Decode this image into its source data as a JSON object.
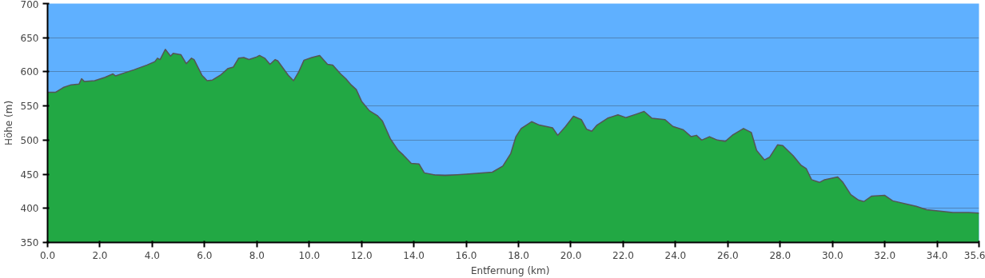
{
  "chart_data": {
    "type": "area",
    "xlabel": "Entfernung   (km)",
    "ylabel": "Höhe (m)",
    "x": [
      0.0,
      0.3,
      0.6,
      0.9,
      1.2,
      1.3,
      1.4,
      1.8,
      2.2,
      2.5,
      2.6,
      2.9,
      3.3,
      3.8,
      4.1,
      4.2,
      4.3,
      4.5,
      4.7,
      4.8,
      5.1,
      5.3,
      5.5,
      5.6,
      5.9,
      6.1,
      6.3,
      6.6,
      6.9,
      7.1,
      7.3,
      7.5,
      7.7,
      8.0,
      8.1,
      8.3,
      8.5,
      8.7,
      8.8,
      9.2,
      9.4,
      9.6,
      9.8,
      10.1,
      10.4,
      10.7,
      10.9,
      11.2,
      11.4,
      11.6,
      11.8,
      12.0,
      12.3,
      12.6,
      12.8,
      13.1,
      13.4,
      13.6,
      13.9,
      14.2,
      14.4,
      14.8,
      15.2,
      16.0,
      17.0,
      17.4,
      17.7,
      17.9,
      18.1,
      18.5,
      18.8,
      19.3,
      19.5,
      19.8,
      20.1,
      20.4,
      20.6,
      20.8,
      21.0,
      21.4,
      21.8,
      22.1,
      22.5,
      22.8,
      23.1,
      23.6,
      23.9,
      24.3,
      24.6,
      24.8,
      25.0,
      25.3,
      25.6,
      25.9,
      26.2,
      26.6,
      26.9,
      27.1,
      27.4,
      27.6,
      27.9,
      28.1,
      28.5,
      28.8,
      29.0,
      29.2,
      29.5,
      29.7,
      30.2,
      30.4,
      30.7,
      31.0,
      31.2,
      31.5,
      32.0,
      32.3,
      33.2,
      33.6,
      34.1,
      34.6,
      35.2,
      35.6
    ],
    "series": [
      {
        "color": "#22a844",
        "values": [
          570,
          570,
          577,
          581,
          582,
          590,
          586,
          587,
          592,
          597,
          594,
          598,
          603,
          610,
          615,
          620,
          618,
          633,
          623,
          627,
          625,
          612,
          620,
          618,
          595,
          587,
          588,
          595,
          605,
          607,
          620,
          621,
          618,
          622,
          624,
          620,
          611,
          618,
          616,
          595,
          587,
          600,
          617,
          621,
          624,
          611,
          610,
          597,
          590,
          581,
          574,
          557,
          543,
          536,
          528,
          502,
          485,
          478,
          466,
          465,
          452,
          449,
          448,
          450,
          453,
          462,
          480,
          505,
          517,
          527,
          522,
          518,
          507,
          520,
          535,
          530,
          516,
          513,
          522,
          532,
          537,
          533,
          538,
          542,
          532,
          530,
          520,
          515,
          505,
          507,
          500,
          505,
          500,
          498,
          508,
          517,
          511,
          485,
          471,
          475,
          493,
          492,
          477,
          463,
          458,
          442,
          438,
          442,
          446,
          438,
          420,
          412,
          410,
          418,
          419,
          411,
          403,
          398,
          396,
          394,
          394,
          393
        ]
      }
    ],
    "xlim": [
      0,
      35.6
    ],
    "ylim": [
      350,
      700
    ],
    "xticks": [
      {
        "value": 0,
        "label": "0.0"
      },
      {
        "value": 2,
        "label": "2.0"
      },
      {
        "value": 4,
        "label": "4.0"
      },
      {
        "value": 6,
        "label": "6.0"
      },
      {
        "value": 8,
        "label": "8.0"
      },
      {
        "value": 10,
        "label": "10.0"
      },
      {
        "value": 12,
        "label": "12.0"
      },
      {
        "value": 14,
        "label": "14.0"
      },
      {
        "value": 16,
        "label": "16.0"
      },
      {
        "value": 18,
        "label": "18.0"
      },
      {
        "value": 20,
        "label": "20.0"
      },
      {
        "value": 22,
        "label": "22.0"
      },
      {
        "value": 24,
        "label": "24.0"
      },
      {
        "value": 26,
        "label": "26.0"
      },
      {
        "value": 28,
        "label": "28.0"
      },
      {
        "value": 30,
        "label": "30.0"
      },
      {
        "value": 32,
        "label": "32.0"
      },
      {
        "value": 34,
        "label": "34.0"
      },
      {
        "value": 35.6,
        "label": "35.6"
      }
    ],
    "yticks": [
      350,
      400,
      450,
      500,
      550,
      600,
      650,
      700
    ],
    "grid": "y"
  }
}
